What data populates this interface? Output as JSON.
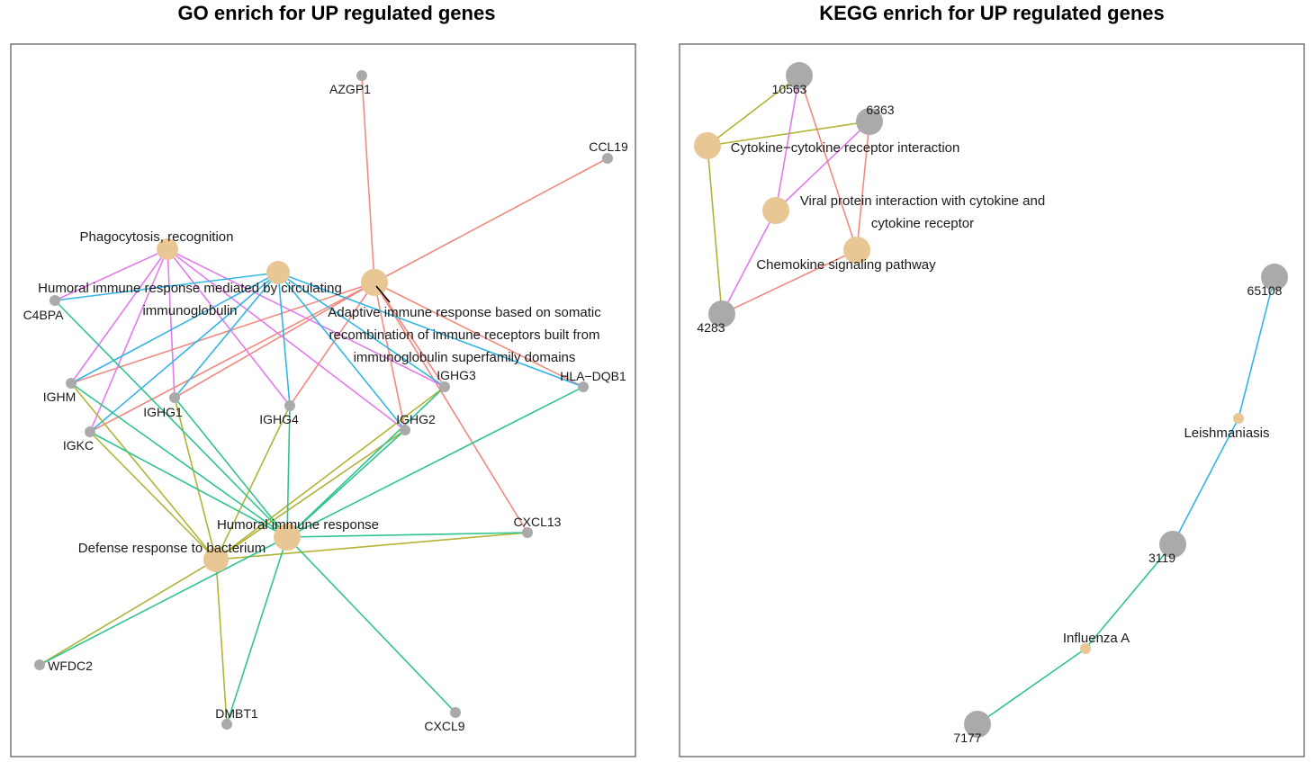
{
  "colors": {
    "term_node": "#E8C794",
    "gene_node": "#AAAAAA",
    "salmon": "#F08A82",
    "magenta": "#E27BEB",
    "cyan": "#33B5E5",
    "olive": "#B2B335",
    "teal": "#2FC48F"
  },
  "panels": [
    {
      "id": "go",
      "title": "GO enrich for UP regulated genes",
      "nodes": [
        {
          "id": "AZGP1",
          "type": "gene",
          "label": "AZGP1"
        },
        {
          "id": "CCL19",
          "type": "gene",
          "label": "CCL19"
        },
        {
          "id": "C4BPA",
          "type": "gene",
          "label": "C4BPA"
        },
        {
          "id": "IGHM",
          "type": "gene",
          "label": "IGHM"
        },
        {
          "id": "IGHG1",
          "type": "gene",
          "label": "IGHG1"
        },
        {
          "id": "IGHG4",
          "type": "gene",
          "label": "IGHG4"
        },
        {
          "id": "IGHG2",
          "type": "gene",
          "label": "IGHG2"
        },
        {
          "id": "IGHG3",
          "type": "gene",
          "label": "IGHG3"
        },
        {
          "id": "HLA-DQB1",
          "type": "gene",
          "label": "HLA−DQB1"
        },
        {
          "id": "IGKC",
          "type": "gene",
          "label": "IGKC"
        },
        {
          "id": "CXCL13",
          "type": "gene",
          "label": "CXCL13"
        },
        {
          "id": "WFDC2",
          "type": "gene",
          "label": "WFDC2"
        },
        {
          "id": "DMBT1",
          "type": "gene",
          "label": "DMBT1"
        },
        {
          "id": "CXCL9",
          "type": "gene",
          "label": "CXCL9"
        },
        {
          "id": "phago",
          "type": "term",
          "label": [
            "Phagocytosis, recognition"
          ]
        },
        {
          "id": "humoral_ig",
          "type": "term",
          "label": [
            "Humoral immune response mediated by circulating",
            "immunoglobulin"
          ]
        },
        {
          "id": "adaptive",
          "type": "term",
          "label": [
            "Adaptive immune response based on somatic",
            "recombination of immune receptors built from",
            "immunoglobulin superfamily domains"
          ]
        },
        {
          "id": "humoral",
          "type": "term",
          "label": [
            "Humoral immune response"
          ]
        },
        {
          "id": "defense",
          "type": "term",
          "label": [
            "Defense response to bacterium"
          ]
        }
      ],
      "edges": [
        {
          "from": "adaptive",
          "to": "AZGP1",
          "color": "salmon"
        },
        {
          "from": "adaptive",
          "to": "CCL19",
          "color": "salmon"
        },
        {
          "from": "adaptive",
          "to": "IGHM",
          "color": "salmon"
        },
        {
          "from": "adaptive",
          "to": "IGKC",
          "color": "salmon"
        },
        {
          "from": "adaptive",
          "to": "IGHG1",
          "color": "salmon"
        },
        {
          "from": "adaptive",
          "to": "IGHG4",
          "color": "salmon"
        },
        {
          "from": "adaptive",
          "to": "IGHG2",
          "color": "salmon"
        },
        {
          "from": "adaptive",
          "to": "IGHG3",
          "color": "salmon"
        },
        {
          "from": "adaptive",
          "to": "HLA-DQB1",
          "color": "salmon"
        },
        {
          "from": "adaptive",
          "to": "CXCL13",
          "color": "salmon"
        },
        {
          "from": "phago",
          "to": "C4BPA",
          "color": "magenta"
        },
        {
          "from": "phago",
          "to": "IGHM",
          "color": "magenta"
        },
        {
          "from": "phago",
          "to": "IGKC",
          "color": "magenta"
        },
        {
          "from": "phago",
          "to": "IGHG1",
          "color": "magenta"
        },
        {
          "from": "phago",
          "to": "IGHG4",
          "color": "magenta"
        },
        {
          "from": "phago",
          "to": "IGHG2",
          "color": "magenta"
        },
        {
          "from": "phago",
          "to": "IGHG3",
          "color": "magenta"
        },
        {
          "from": "humoral_ig",
          "to": "C4BPA",
          "color": "cyan"
        },
        {
          "from": "humoral_ig",
          "to": "IGHM",
          "color": "cyan"
        },
        {
          "from": "humoral_ig",
          "to": "IGKC",
          "color": "cyan"
        },
        {
          "from": "humoral_ig",
          "to": "IGHG1",
          "color": "cyan"
        },
        {
          "from": "humoral_ig",
          "to": "IGHG4",
          "color": "cyan"
        },
        {
          "from": "humoral_ig",
          "to": "IGHG2",
          "color": "cyan"
        },
        {
          "from": "humoral_ig",
          "to": "IGHG3",
          "color": "cyan"
        },
        {
          "from": "humoral_ig",
          "to": "HLA-DQB1",
          "color": "cyan"
        },
        {
          "from": "defense",
          "to": "IGHM",
          "color": "olive"
        },
        {
          "from": "defense",
          "to": "IGKC",
          "color": "olive"
        },
        {
          "from": "defense",
          "to": "IGHG1",
          "color": "olive"
        },
        {
          "from": "defense",
          "to": "IGHG4",
          "color": "olive"
        },
        {
          "from": "defense",
          "to": "IGHG2",
          "color": "olive"
        },
        {
          "from": "defense",
          "to": "IGHG3",
          "color": "olive"
        },
        {
          "from": "defense",
          "to": "CXCL13",
          "color": "olive"
        },
        {
          "from": "defense",
          "to": "WFDC2",
          "color": "olive"
        },
        {
          "from": "defense",
          "to": "DMBT1",
          "color": "olive"
        },
        {
          "from": "humoral",
          "to": "C4BPA",
          "color": "teal"
        },
        {
          "from": "humoral",
          "to": "IGHM",
          "color": "teal"
        },
        {
          "from": "humoral",
          "to": "IGKC",
          "color": "teal"
        },
        {
          "from": "humoral",
          "to": "IGHG1",
          "color": "teal"
        },
        {
          "from": "humoral",
          "to": "IGHG4",
          "color": "teal"
        },
        {
          "from": "humoral",
          "to": "IGHG2",
          "color": "teal"
        },
        {
          "from": "humoral",
          "to": "IGHG3",
          "color": "teal"
        },
        {
          "from": "humoral",
          "to": "HLA-DQB1",
          "color": "teal"
        },
        {
          "from": "humoral",
          "to": "CXCL13",
          "color": "teal"
        },
        {
          "from": "humoral",
          "to": "WFDC2",
          "color": "teal"
        },
        {
          "from": "humoral",
          "to": "DMBT1",
          "color": "teal"
        },
        {
          "from": "humoral",
          "to": "CXCL9",
          "color": "teal"
        }
      ]
    },
    {
      "id": "kegg",
      "title": "KEGG enrich for UP regulated genes",
      "nodes": [
        {
          "id": "10563",
          "type": "gene",
          "label": "10563"
        },
        {
          "id": "6363",
          "type": "gene",
          "label": "6363"
        },
        {
          "id": "4283",
          "type": "gene",
          "label": "4283"
        },
        {
          "id": "65108",
          "type": "gene",
          "label": "65108"
        },
        {
          "id": "3119",
          "type": "gene",
          "label": "3119"
        },
        {
          "id": "7177",
          "type": "gene",
          "label": "7177"
        },
        {
          "id": "cytokine",
          "type": "term",
          "label": [
            "Cytokine−cytokine receptor interaction"
          ]
        },
        {
          "id": "viral",
          "type": "term",
          "label": [
            "Viral protein interaction with cytokine and",
            "cytokine receptor"
          ]
        },
        {
          "id": "chemokine",
          "type": "term",
          "label": [
            "Chemokine signaling pathway"
          ]
        },
        {
          "id": "leish",
          "type": "term",
          "label": [
            "Leishmaniasis"
          ]
        },
        {
          "id": "influenza",
          "type": "term",
          "label": [
            "Influenza A"
          ]
        }
      ],
      "edges": [
        {
          "from": "cytokine",
          "to": "10563",
          "color": "olive"
        },
        {
          "from": "cytokine",
          "to": "6363",
          "color": "olive"
        },
        {
          "from": "cytokine",
          "to": "4283",
          "color": "olive"
        },
        {
          "from": "viral",
          "to": "10563",
          "color": "magenta"
        },
        {
          "from": "viral",
          "to": "6363",
          "color": "magenta"
        },
        {
          "from": "viral",
          "to": "4283",
          "color": "magenta"
        },
        {
          "from": "chemokine",
          "to": "10563",
          "color": "salmon"
        },
        {
          "from": "chemokine",
          "to": "6363",
          "color": "salmon"
        },
        {
          "from": "chemokine",
          "to": "4283",
          "color": "salmon"
        },
        {
          "from": "leish",
          "to": "65108",
          "color": "cyan"
        },
        {
          "from": "leish",
          "to": "3119",
          "color": "cyan"
        },
        {
          "from": "influenza",
          "to": "3119",
          "color": "teal"
        },
        {
          "from": "influenza",
          "to": "7177",
          "color": "teal"
        }
      ]
    }
  ]
}
